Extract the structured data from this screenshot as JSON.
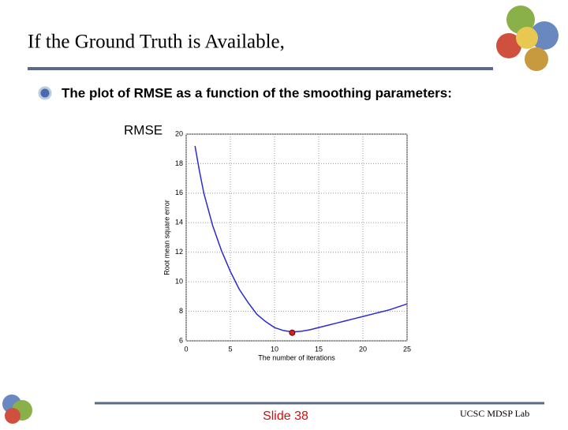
{
  "header": {
    "title": "If the Ground Truth is Available,"
  },
  "bullet": {
    "text": "The plot of RMSE as a function of the smoothing parameters:"
  },
  "side_label": "RMSE",
  "chart_data": {
    "type": "line",
    "xlabel": "The number of iterations",
    "ylabel": "Root mean square error",
    "x": [
      1,
      1.5,
      2,
      3,
      4,
      5,
      6,
      7,
      8,
      9,
      10,
      11,
      12,
      13,
      14,
      15,
      16,
      17,
      18,
      19,
      20,
      21,
      22,
      23,
      24,
      25
    ],
    "series": [
      {
        "name": "RMSE",
        "color": "#2a2ad0",
        "values": [
          19.2,
          17.5,
          16,
          13.8,
          12.1,
          10.7,
          9.5,
          8.6,
          7.8,
          7.3,
          6.9,
          6.7,
          6.6,
          6.65,
          6.75,
          6.9,
          7.05,
          7.2,
          7.35,
          7.5,
          7.65,
          7.8,
          7.95,
          8.1,
          8.3,
          8.5
        ]
      }
    ],
    "marker": {
      "x": 12,
      "y": 6.55,
      "color": "#d02020"
    },
    "xlim": [
      0,
      25
    ],
    "ylim": [
      6,
      20
    ],
    "xticks": [
      0,
      5,
      10,
      15,
      20,
      25
    ],
    "yticks": [
      6,
      8,
      10,
      12,
      14,
      16,
      18,
      20
    ],
    "grid": true
  },
  "footer": {
    "slide": "Slide 38",
    "lab": "UCSC MDSP Lab"
  }
}
